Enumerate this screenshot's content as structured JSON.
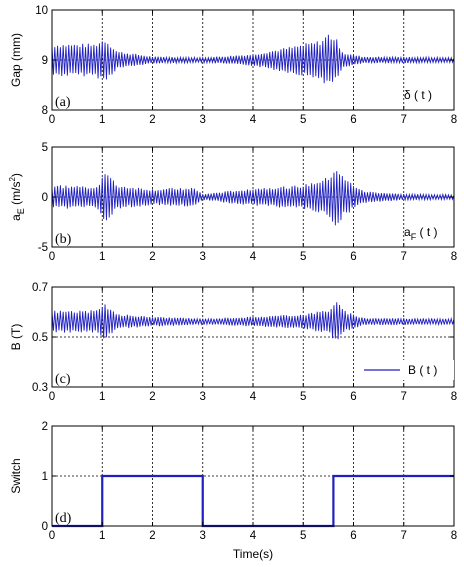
{
  "chart_data": [
    {
      "type": "line",
      "panel_label": "(a)",
      "ylabel": "Gap (mm)",
      "legend": "δ ( t )",
      "xlim": [
        0,
        8
      ],
      "ylim": [
        8,
        10
      ],
      "xticks": [
        "0",
        "1",
        "2",
        "3",
        "4",
        "5",
        "6",
        "7",
        "8"
      ],
      "yticks": [
        "8",
        "9",
        "10"
      ],
      "grid": true,
      "series": [
        {
          "name": "δ ( t )",
          "color": "#2020c0",
          "center": 9.0,
          "frequency_hz": 18,
          "envelope": {
            "t": [
              0,
              0.85,
              1.05,
              1.3,
              2.0,
              3.0,
              4.0,
              4.8,
              5.35,
              5.5,
              5.65,
              5.8,
              6.2,
              8.0
            ],
            "a": [
              0.33,
              0.33,
              0.45,
              0.18,
              0.07,
              0.05,
              0.12,
              0.28,
              0.4,
              0.55,
              0.45,
              0.15,
              0.07,
              0.05
            ]
          }
        }
      ]
    },
    {
      "type": "line",
      "panel_label": "(b)",
      "ylabel": "a_E (m/s²)",
      "ylabel_main": "a",
      "ylabel_sub": "E",
      "ylabel_unit": " (m/s",
      "ylabel_sup": "2",
      "ylabel_close": ")",
      "legend": "a_F ( t )",
      "legend_main": "a",
      "legend_sub": "F",
      "legend_rest": " ( t )",
      "xlim": [
        0,
        8
      ],
      "ylim": [
        -5,
        5
      ],
      "xticks": [
        "0",
        "1",
        "2",
        "3",
        "4",
        "5",
        "6",
        "7",
        "8"
      ],
      "yticks": [
        "-5",
        "0",
        "5"
      ],
      "grid": true,
      "series": [
        {
          "name": "a_F ( t )",
          "color": "#2020c0",
          "center": 0,
          "frequency_hz": 18,
          "envelope": {
            "t": [
              0,
              0.9,
              1.05,
              1.3,
              2.0,
              2.8,
              3.0,
              4.0,
              5.0,
              5.5,
              5.65,
              5.8,
              6.2,
              7.0,
              8.0
            ],
            "a": [
              1.2,
              1.1,
              2.7,
              1.2,
              0.8,
              1.0,
              0.3,
              0.9,
              1.2,
              2.0,
              3.2,
              2.0,
              0.6,
              0.3,
              0.25
            ]
          }
        }
      ]
    },
    {
      "type": "line",
      "panel_label": "(c)",
      "ylabel": "B (T)",
      "legend": "B ( t )",
      "xlim": [
        0,
        8
      ],
      "ylim": [
        0.3,
        0.7
      ],
      "xticks": [
        "0",
        "1",
        "2",
        "3",
        "4",
        "5",
        "6",
        "7",
        "8"
      ],
      "yticks": [
        "0.3",
        "0.5",
        "0.7"
      ],
      "grid": true,
      "series": [
        {
          "name": "B ( t )",
          "color": "#2020c0",
          "center": 0.562,
          "frequency_hz": 18,
          "envelope": {
            "t": [
              0,
              0.9,
              1.05,
              1.3,
              2.0,
              3.0,
              4.0,
              5.0,
              5.5,
              5.65,
              5.85,
              6.2,
              8.0
            ],
            "a": [
              0.045,
              0.045,
              0.075,
              0.03,
              0.02,
              0.012,
              0.02,
              0.03,
              0.05,
              0.085,
              0.04,
              0.015,
              0.012
            ]
          }
        }
      ]
    },
    {
      "type": "line",
      "panel_label": "(d)",
      "ylabel": "Switch",
      "xlabel": "Time(s)",
      "xlim": [
        0,
        8
      ],
      "ylim": [
        0,
        2
      ],
      "xticks": [
        "0",
        "1",
        "2",
        "3",
        "4",
        "5",
        "6",
        "7",
        "8"
      ],
      "yticks": [
        "0",
        "1",
        "2"
      ],
      "grid": true,
      "series": [
        {
          "name": "Switch",
          "color": "#2020c0",
          "step": true,
          "x": [
            0,
            1,
            1,
            3,
            3,
            5.6,
            5.6,
            8
          ],
          "y": [
            0,
            0,
            1,
            1,
            0,
            0,
            1,
            1
          ]
        }
      ]
    }
  ]
}
